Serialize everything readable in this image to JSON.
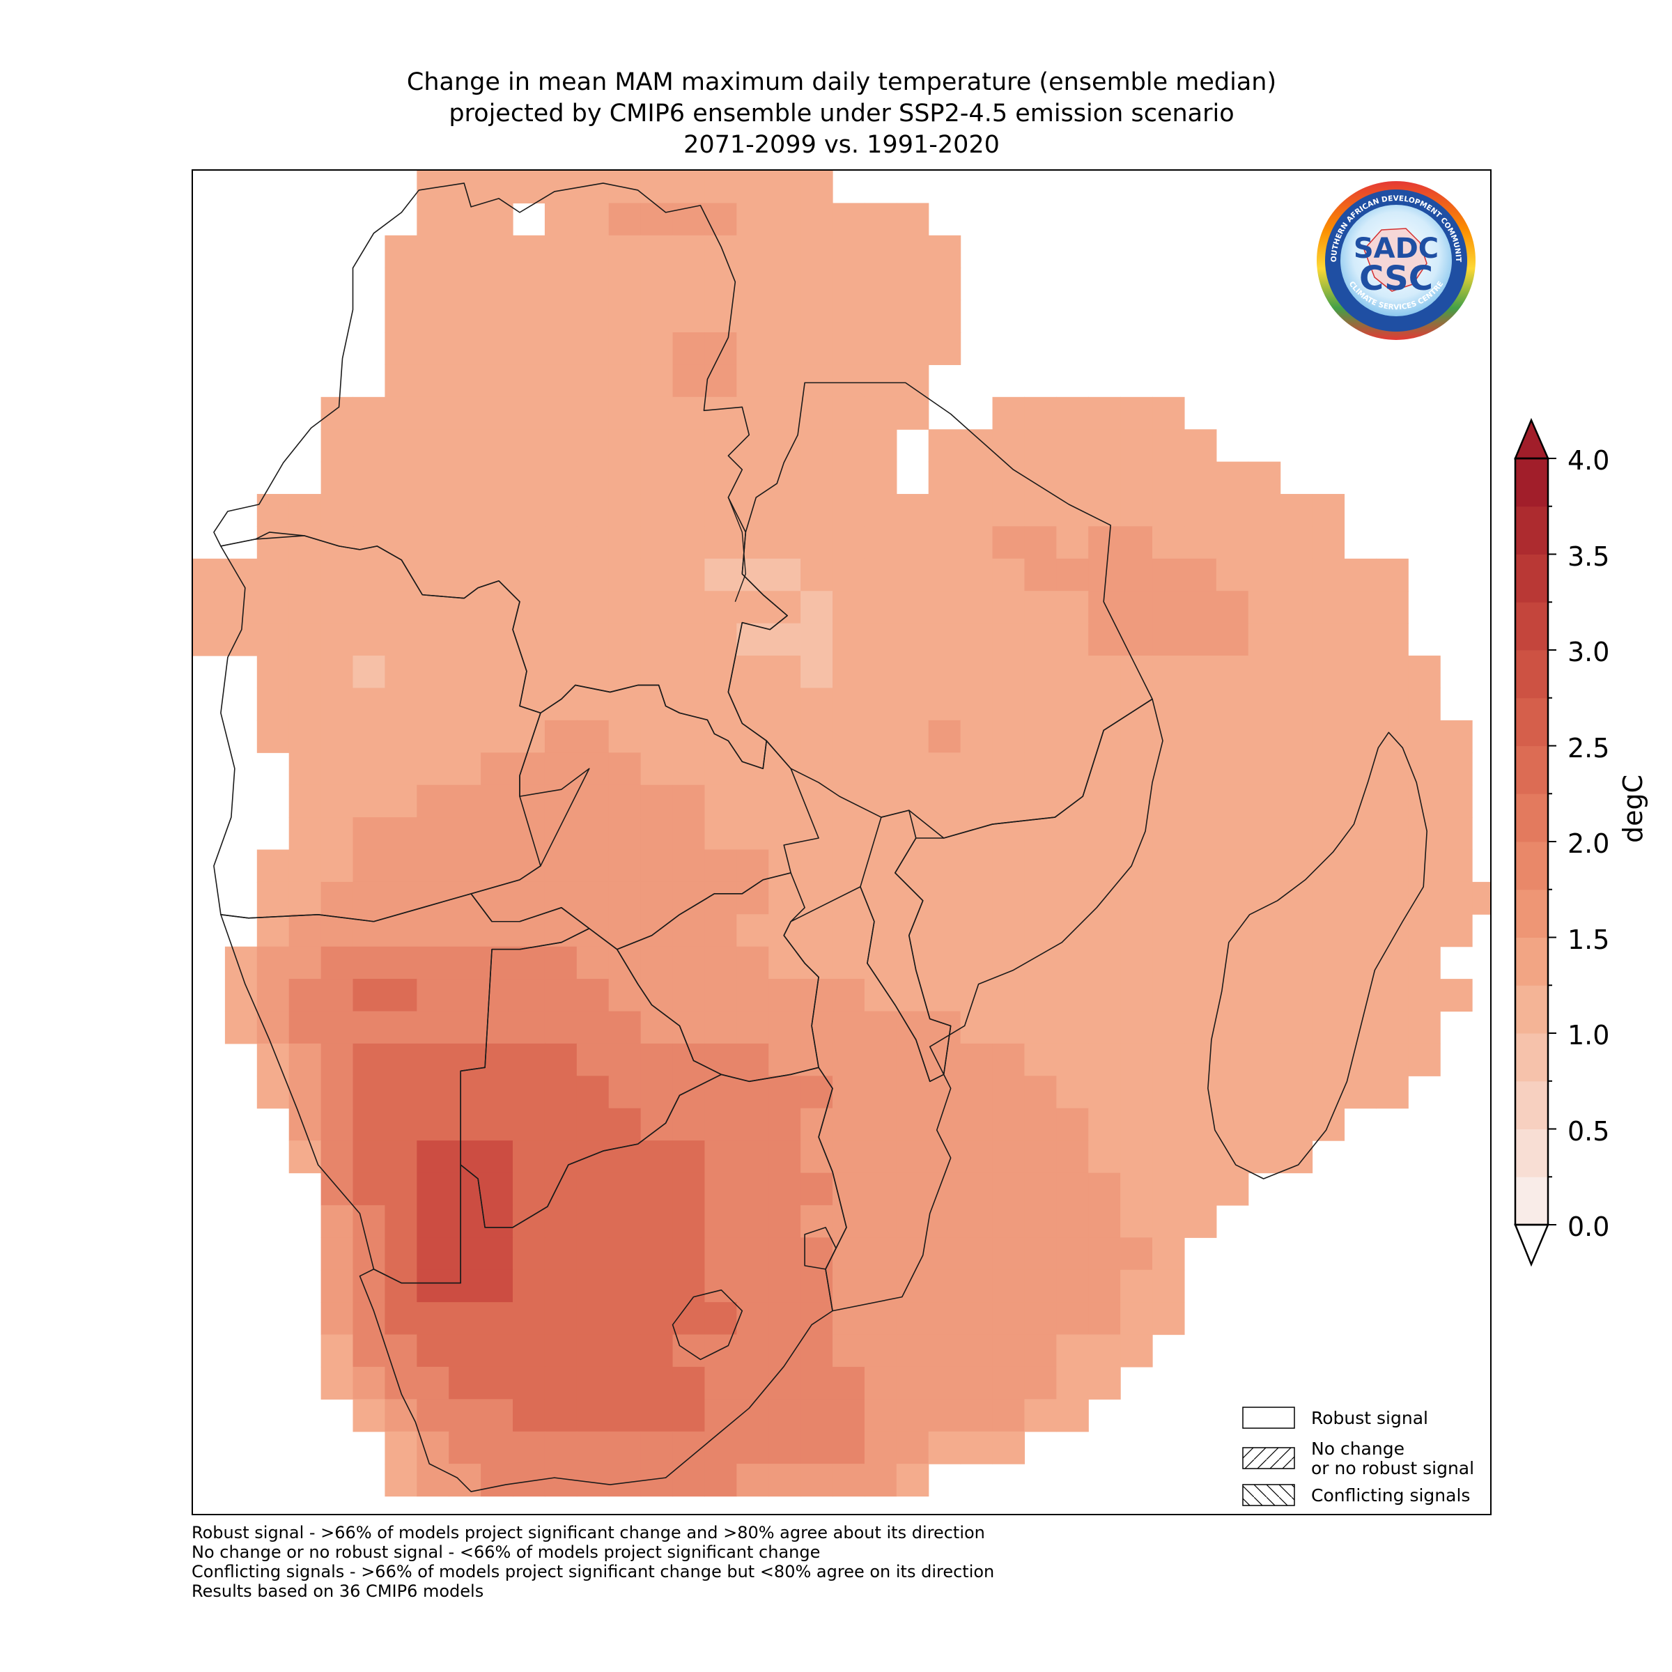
{
  "title": {
    "line1": "Change in mean MAM maximum daily temperature (ensemble median)",
    "line2": "projected by CMIP6 ensemble under SSP2-4.5 emission scenario",
    "line3": "2071-2099 vs. 1991-2020"
  },
  "logo": {
    "ring_text_top": "SOUTHERN AFRICAN DEVELOPMENT COMMUNITY",
    "ring_text_bottom": "CLIMATE SERVICES CENTRE",
    "mark_top": "SADC",
    "mark_bottom": "CSC"
  },
  "colorbar": {
    "units": "degC",
    "ticks": [
      "4.0",
      "3.5",
      "3.0",
      "2.5",
      "2.0",
      "1.5",
      "1.0",
      "0.5",
      "0.0"
    ],
    "min": 0.0,
    "max": 4.0,
    "colors": [
      "#f9ece8",
      "#f8ded4",
      "#f7d0c0",
      "#f6c2ab",
      "#f4b496",
      "#f2a584",
      "#ee9675",
      "#e98869",
      "#e37a5e",
      "#dc6c54",
      "#d55f4b",
      "#cd5243",
      "#c4453c",
      "#b93835",
      "#ad2b2f",
      "#a11e2a"
    ],
    "extend": "both"
  },
  "legend": {
    "items": [
      {
        "label": "Robust signal",
        "hatch": "none"
      },
      {
        "label": "No change\nor no robust signal",
        "hatch": "forward"
      },
      {
        "label": "Conflicting signals",
        "hatch": "backward"
      }
    ]
  },
  "notes": [
    "Robust signal - >66% of models project significant change and >80% agree about its direction",
    "No change or no robust signal - <66% of models project significant change",
    "Conflicting signals - >66% of models project significant change but <80% agree on its direction",
    "Results based on 36 CMIP6 models"
  ],
  "map": {
    "region": "Southern Africa (SADC) with Madagascar",
    "field_min": 1.0,
    "field_max": 3.5,
    "hotspot": "Namibia / Botswana / South Africa interior",
    "grid": {
      "cols": 40,
      "rows": 41,
      "cells": [
        ".......PPPPPPPPPPPPP....................",
        ".......PPP.PP1111PPPPPP.................",
        "......PPPPPPPPPPPPPPPPPP................",
        "......PPPPPPPPPPPPPPPPPP................",
        "......PPPPPPPPPPPPPPPPPP................",
        "......PPPPPPPPP11PPPPPPP................",
        "......PPPPPPPPP11PPPPPP.................",
        "....PPPPPPPPPPPPPPPPPPP..PPPPPP.........",
        "....PPPPPPPPPPPPPPPPPP.PPPPPPPPP........",
        "....PPPPPPPPPPPPPPPPPP.PPPPPPPPPPP......",
        "..PPPPPPPPPPPPPPPPPPPPPPPPPPPPPPPPPP....",
        "..PPPPPPPPPPPPPPPPPPPPPPP11P11PPPPPP....",
        "PPPPPPPPPPPPPPPPHHHPPPPPPP111111PPPPPP..",
        "PPPPPPPPPPPPPPPPPPPHPPPPPPPP11111PPPPP..",
        "PPPPPPPPPPPPPPPPPHHHPPPPPPPP11111PPPPP..",
        "..PPPHPPPPPPPPPPPPPHPPPPPPPPPPPPPPPPPPP.",
        "..PPPPPPPPPPPPPPPPPPPPPPPPPPPPPPPPPPPPP.",
        "..PPPPPPPPP11PPPPPPPPPP1PPPPPPPPPPPPPPPP",
        "...PPPPPP11111PPPPPPPPPPPPPPPPPPPPPPPPPP",
        "...PPPP111111111PPPPPPPPPPPPPPPPPPPPPPPP",
        "...PP11111111111PPPPPPPPPPPPPPPPPPPPPPPP",
        "..PPP1111111111111PPPPPPPPPPPPPPPPPPPPPP........................PP",
        "..PP11111111111111PPPPPPPPPPPPPPPPPPPPPPP.......................PPP",
        "..P11111111111111PPPPPPPPPPPPPPPPPPPPPPP......................PPPP",
        ".P1122222222111111PPPPPPPPPPPPPPPPPPPPP.....................PPPPP",
        ".P1223322222211111111PPPPPPPPPPPPPPPPPPP....................PPPPP",
        ".P1222222222221111111111PPPPPPPPPPPPPPP....................PPPPPP",
        "..P12333333322222211111111PPPPPPPPPPPPP....................PPPPPPP",
        "..P123333333322222221111111PPPPPPPPPPP....................PPPPPPP",
        "...1233333333322222111111111PPPPPPPP......................PPPPPP",
        "...P233444333333222111111111PPPPPPP.......................PPPPPP",
        "....2334443333332222111111111PPPP........................PPPPPP",
        "....1234443333332221111111111PPP.........................PPPPP",
        "....12344433333322221111111111P..........................PPPP",
        "....1234443333332222111111111PP...........................PP",
        "....1233333333333222111111111PP",
        "....P2233333333222221111111PPP",
        "....P1223333333322222111111PP",
        ".....P12223333332222211111PP",
        "......P1222222222222211PPP",
        "......P112222222211111P"
      ]
    }
  }
}
